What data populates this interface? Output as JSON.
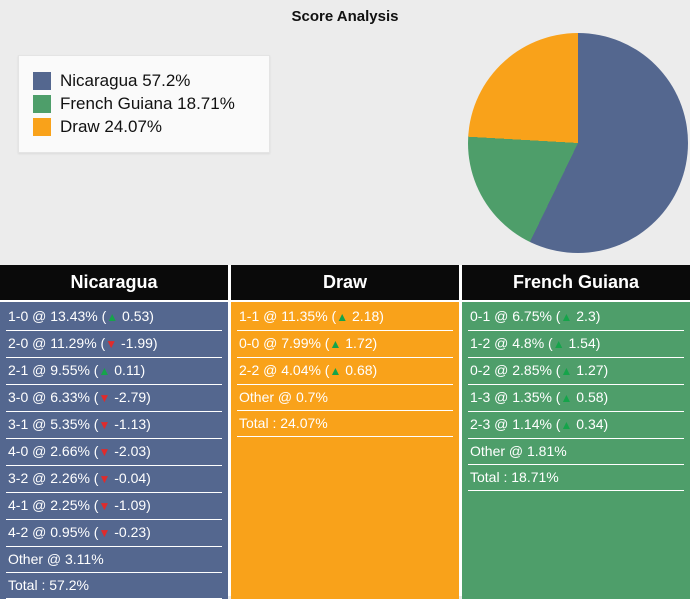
{
  "title": "Score Analysis",
  "legend": {
    "items": [
      {
        "label": "Nicaragua 57.2%",
        "color": "#54678f"
      },
      {
        "label": "French Guiana 18.71%",
        "color": "#4e9e6a"
      },
      {
        "label": "Draw 24.07%",
        "color": "#f9a21a"
      }
    ]
  },
  "chart_data": {
    "type": "pie",
    "title": "Score Analysis",
    "slices": [
      {
        "label": "Nicaragua",
        "value": 57.2,
        "color": "#54678f"
      },
      {
        "label": "French Guiana",
        "value": 18.71,
        "color": "#4e9e6a"
      },
      {
        "label": "Draw",
        "value": 24.07,
        "color": "#f9a21a"
      }
    ],
    "start_angle_deg": 0,
    "direction": "clockwise",
    "legend_position": "left"
  },
  "icons": {
    "up": "▲",
    "down": "▼"
  },
  "trend_colors": {
    "up": "#15a44a",
    "down": "#e02b2b"
  },
  "columns": [
    {
      "key": "nicaragua",
      "header": "Nicaragua",
      "color": "#54678f",
      "rows": [
        {
          "text": "1-0 @ 13.43%",
          "trend": "up",
          "delta": "0.53"
        },
        {
          "text": "2-0 @ 11.29%",
          "trend": "down",
          "delta": "-1.99"
        },
        {
          "text": "2-1 @ 9.55%",
          "trend": "up",
          "delta": "0.11"
        },
        {
          "text": "3-0 @ 6.33%",
          "trend": "down",
          "delta": "-2.79"
        },
        {
          "text": "3-1 @ 5.35%",
          "trend": "down",
          "delta": "-1.13"
        },
        {
          "text": "4-0 @ 2.66%",
          "trend": "down",
          "delta": "-2.03"
        },
        {
          "text": "3-2 @ 2.26%",
          "trend": "down",
          "delta": "-0.04"
        },
        {
          "text": "4-1 @ 2.25%",
          "trend": "down",
          "delta": "-1.09"
        },
        {
          "text": "4-2 @ 0.95%",
          "trend": "down",
          "delta": "-0.23"
        },
        {
          "text": "Other @ 3.11%"
        },
        {
          "text": "Total : 57.2%"
        }
      ]
    },
    {
      "key": "draw",
      "header": "Draw",
      "color": "#f9a21a",
      "rows": [
        {
          "text": "1-1 @ 11.35%",
          "trend": "up",
          "delta": "2.18"
        },
        {
          "text": "0-0 @ 7.99%",
          "trend": "up",
          "delta": "1.72"
        },
        {
          "text": "2-2 @ 4.04%",
          "trend": "up",
          "delta": "0.68"
        },
        {
          "text": "Other @ 0.7%"
        },
        {
          "text": "Total : 24.07%"
        }
      ]
    },
    {
      "key": "french-guiana",
      "header": "French Guiana",
      "color": "#4e9e6a",
      "rows": [
        {
          "text": "0-1 @ 6.75%",
          "trend": "up",
          "delta": "2.3"
        },
        {
          "text": "1-2 @ 4.8%",
          "trend": "up",
          "delta": "1.54"
        },
        {
          "text": "0-2 @ 2.85%",
          "trend": "up",
          "delta": "1.27"
        },
        {
          "text": "1-3 @ 1.35%",
          "trend": "up",
          "delta": "0.58"
        },
        {
          "text": "2-3 @ 1.14%",
          "trend": "up",
          "delta": "0.34"
        },
        {
          "text": "Other @ 1.81%"
        },
        {
          "text": "Total : 18.71%"
        }
      ]
    }
  ]
}
